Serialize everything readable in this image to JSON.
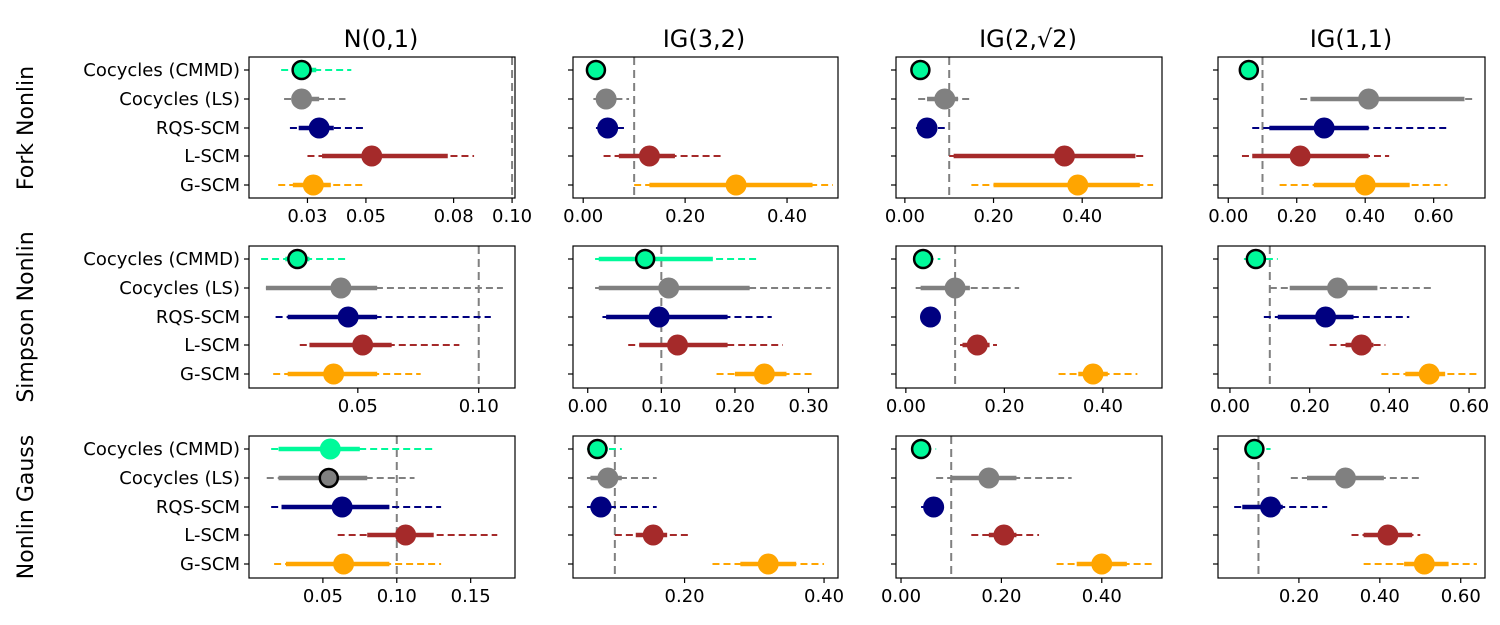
{
  "figure": {
    "column_titles": [
      "N(0,1)",
      "IG(3,2)",
      "IG(2,√2)",
      "IG(1,1)"
    ],
    "row_titles": [
      "Fork Nonlin",
      "Simpson Nonlin",
      "Nonlin Gauss"
    ],
    "method_labels": [
      "Cocycles (CMMD)",
      "Cocycles (LS)",
      "RQS-SCM",
      "L-SCM",
      "G-SCM"
    ],
    "colors": {
      "Cocycles (CMMD)": "#00FA9A",
      "Cocycles (LS)": "#808080",
      "RQS-SCM": "#000080",
      "L-SCM": "#A52A2A",
      "G-SCM": "#FFA500"
    }
  },
  "chart_data": [
    {
      "type": "scatter",
      "title": "N(0,1)",
      "row": "Fork Nonlin",
      "xlim": [
        0.01,
        0.101
      ],
      "xticks": [
        0.03,
        0.05,
        0.08,
        0.1
      ],
      "xticklabels": [
        "0.03",
        "0.05",
        "0.08",
        "0.10"
      ],
      "reference_line": 0.1,
      "series": [
        {
          "name": "Cocycles (CMMD)",
          "median": 0.028,
          "ci_inner": [
            0.025,
            0.033
          ],
          "ci_outer": [
            0.021,
            0.045
          ],
          "highlight": true
        },
        {
          "name": "Cocycles (LS)",
          "median": 0.028,
          "ci_inner": [
            0.026,
            0.034
          ],
          "ci_outer": [
            0.022,
            0.043
          ],
          "highlight": false
        },
        {
          "name": "RQS-SCM",
          "median": 0.034,
          "ci_inner": [
            0.027,
            0.039
          ],
          "ci_outer": [
            0.024,
            0.049
          ],
          "highlight": false
        },
        {
          "name": "L-SCM",
          "median": 0.052,
          "ci_inner": [
            0.035,
            0.078
          ],
          "ci_outer": [
            0.03,
            0.087
          ],
          "highlight": false
        },
        {
          "name": "G-SCM",
          "median": 0.032,
          "ci_inner": [
            0.025,
            0.038
          ],
          "ci_outer": [
            0.02,
            0.049
          ],
          "highlight": false
        }
      ]
    },
    {
      "type": "scatter",
      "title": "IG(3,2)",
      "row": "Fork Nonlin",
      "xlim": [
        -0.02,
        0.5
      ],
      "xticks": [
        0.0,
        0.2,
        0.4
      ],
      "xticklabels": [
        "0.00",
        "0.20",
        "0.40"
      ],
      "reference_line": 0.1,
      "series": [
        {
          "name": "Cocycles (CMMD)",
          "median": 0.025,
          "ci_inner": [
            0.02,
            0.032
          ],
          "ci_outer": [
            0.017,
            0.035
          ],
          "highlight": true
        },
        {
          "name": "Cocycles (LS)",
          "median": 0.045,
          "ci_inner": [
            0.03,
            0.06
          ],
          "ci_outer": [
            0.02,
            0.09
          ],
          "highlight": false
        },
        {
          "name": "RQS-SCM",
          "median": 0.048,
          "ci_inner": [
            0.03,
            0.065
          ],
          "ci_outer": [
            0.025,
            0.08
          ],
          "highlight": false
        },
        {
          "name": "L-SCM",
          "median": 0.13,
          "ci_inner": [
            0.07,
            0.18
          ],
          "ci_outer": [
            0.04,
            0.27
          ],
          "highlight": false
        },
        {
          "name": "G-SCM",
          "median": 0.3,
          "ci_inner": [
            0.13,
            0.45
          ],
          "ci_outer": [
            0.1,
            0.49
          ],
          "highlight": false
        }
      ]
    },
    {
      "type": "scatter",
      "title": "IG(2,√2)",
      "row": "Fork Nonlin",
      "xlim": [
        -0.02,
        0.58
      ],
      "xticks": [
        0.0,
        0.2,
        0.4
      ],
      "xticklabels": [
        "0.00",
        "0.20",
        "0.40"
      ],
      "reference_line": 0.1,
      "series": [
        {
          "name": "Cocycles (CMMD)",
          "median": 0.035,
          "ci_inner": [
            0.025,
            0.045
          ],
          "ci_outer": [
            0.02,
            0.05
          ],
          "highlight": true
        },
        {
          "name": "Cocycles (LS)",
          "median": 0.09,
          "ci_inner": [
            0.05,
            0.12
          ],
          "ci_outer": [
            0.03,
            0.15
          ],
          "highlight": false
        },
        {
          "name": "RQS-SCM",
          "median": 0.05,
          "ci_inner": [
            0.035,
            0.07
          ],
          "ci_outer": [
            0.025,
            0.09
          ],
          "highlight": false
        },
        {
          "name": "L-SCM",
          "median": 0.36,
          "ci_inner": [
            0.11,
            0.52
          ],
          "ci_outer": [
            0.1,
            0.54
          ],
          "highlight": false
        },
        {
          "name": "G-SCM",
          "median": 0.39,
          "ci_inner": [
            0.2,
            0.53
          ],
          "ci_outer": [
            0.15,
            0.56
          ],
          "highlight": false
        }
      ]
    },
    {
      "type": "scatter",
      "title": "IG(1,1)",
      "row": "Fork Nonlin",
      "xlim": [
        -0.03,
        0.75
      ],
      "xticks": [
        0.0,
        0.2,
        0.4,
        0.6
      ],
      "xticklabels": [
        "0.00",
        "0.20",
        "0.40",
        "0.60"
      ],
      "reference_line": 0.1,
      "series": [
        {
          "name": "Cocycles (CMMD)",
          "median": 0.06,
          "ci_inner": [
            0.045,
            0.075
          ],
          "ci_outer": [
            0.04,
            0.08
          ],
          "highlight": true
        },
        {
          "name": "Cocycles (LS)",
          "median": 0.41,
          "ci_inner": [
            0.24,
            0.69
          ],
          "ci_outer": [
            0.21,
            0.72
          ],
          "highlight": false
        },
        {
          "name": "RQS-SCM",
          "median": 0.28,
          "ci_inner": [
            0.12,
            0.41
          ],
          "ci_outer": [
            0.07,
            0.64
          ],
          "highlight": false
        },
        {
          "name": "L-SCM",
          "median": 0.21,
          "ci_inner": [
            0.07,
            0.41
          ],
          "ci_outer": [
            0.04,
            0.47
          ],
          "highlight": false
        },
        {
          "name": "G-SCM",
          "median": 0.4,
          "ci_inner": [
            0.25,
            0.53
          ],
          "ci_outer": [
            0.15,
            0.64
          ],
          "highlight": false
        }
      ]
    },
    {
      "type": "scatter",
      "title": "N(0,1)",
      "row": "Simpson Nonlin",
      "xlim": [
        0.005,
        0.115
      ],
      "xticks": [
        0.05,
        0.1
      ],
      "xticklabels": [
        "0.05",
        "0.10"
      ],
      "reference_line": 0.1,
      "series": [
        {
          "name": "Cocycles (CMMD)",
          "median": 0.025,
          "ci_inner": [
            0.02,
            0.03
          ],
          "ci_outer": [
            0.01,
            0.045
          ],
          "highlight": true
        },
        {
          "name": "Cocycles (LS)",
          "median": 0.043,
          "ci_inner": [
            0.012,
            0.058
          ],
          "ci_outer": [
            0.012,
            0.11
          ],
          "highlight": false
        },
        {
          "name": "RQS-SCM",
          "median": 0.046,
          "ci_inner": [
            0.021,
            0.058
          ],
          "ci_outer": [
            0.016,
            0.105
          ],
          "highlight": false
        },
        {
          "name": "L-SCM",
          "median": 0.052,
          "ci_inner": [
            0.03,
            0.064
          ],
          "ci_outer": [
            0.026,
            0.092
          ],
          "highlight": false
        },
        {
          "name": "G-SCM",
          "median": 0.04,
          "ci_inner": [
            0.021,
            0.058
          ],
          "ci_outer": [
            0.015,
            0.076
          ],
          "highlight": false
        }
      ]
    },
    {
      "type": "scatter",
      "title": "IG(3,2)",
      "row": "Simpson Nonlin",
      "xlim": [
        -0.02,
        0.34
      ],
      "xticks": [
        0.0,
        0.1,
        0.2,
        0.3
      ],
      "xticklabels": [
        "0.00",
        "0.10",
        "0.20",
        "0.30"
      ],
      "reference_line": 0.1,
      "series": [
        {
          "name": "Cocycles (CMMD)",
          "median": 0.078,
          "ci_inner": [
            0.015,
            0.17
          ],
          "ci_outer": [
            0.01,
            0.23
          ],
          "highlight": true
        },
        {
          "name": "Cocycles (LS)",
          "median": 0.11,
          "ci_inner": [
            0.015,
            0.22
          ],
          "ci_outer": [
            0.01,
            0.33
          ],
          "highlight": false
        },
        {
          "name": "RQS-SCM",
          "median": 0.097,
          "ci_inner": [
            0.025,
            0.19
          ],
          "ci_outer": [
            0.02,
            0.25
          ],
          "highlight": false
        },
        {
          "name": "L-SCM",
          "median": 0.122,
          "ci_inner": [
            0.07,
            0.19
          ],
          "ci_outer": [
            0.055,
            0.265
          ],
          "highlight": false
        },
        {
          "name": "G-SCM",
          "median": 0.24,
          "ci_inner": [
            0.2,
            0.27
          ],
          "ci_outer": [
            0.175,
            0.305
          ],
          "highlight": false
        }
      ]
    },
    {
      "type": "scatter",
      "title": "IG(2,√2)",
      "row": "Simpson Nonlin",
      "xlim": [
        -0.02,
        0.52
      ],
      "xticks": [
        0.0,
        0.2,
        0.4
      ],
      "xticklabels": [
        "0.00",
        "0.20",
        "0.40"
      ],
      "reference_line": 0.1,
      "series": [
        {
          "name": "Cocycles (CMMD)",
          "median": 0.035,
          "ci_inner": [
            0.025,
            0.05
          ],
          "ci_outer": [
            0.02,
            0.07
          ],
          "highlight": true
        },
        {
          "name": "Cocycles (LS)",
          "median": 0.1,
          "ci_inner": [
            0.03,
            0.13
          ],
          "ci_outer": [
            0.02,
            0.23
          ],
          "highlight": false
        },
        {
          "name": "RQS-SCM",
          "median": 0.05,
          "ci_inner": [
            0.04,
            0.062
          ],
          "ci_outer": [
            0.035,
            0.065
          ],
          "highlight": false
        },
        {
          "name": "L-SCM",
          "median": 0.145,
          "ci_inner": [
            0.115,
            0.17
          ],
          "ci_outer": [
            0.11,
            0.185
          ],
          "highlight": false
        },
        {
          "name": "G-SCM",
          "median": 0.38,
          "ci_inner": [
            0.35,
            0.41
          ],
          "ci_outer": [
            0.31,
            0.47
          ],
          "highlight": false
        }
      ]
    },
    {
      "type": "scatter",
      "title": "IG(1,1)",
      "row": "Simpson Nonlin",
      "xlim": [
        -0.03,
        0.64
      ],
      "xticks": [
        0.0,
        0.2,
        0.4,
        0.6
      ],
      "xticklabels": [
        "0.00",
        "0.20",
        "0.40",
        "0.60"
      ],
      "reference_line": 0.1,
      "series": [
        {
          "name": "Cocycles (CMMD)",
          "median": 0.065,
          "ci_inner": [
            0.045,
            0.09
          ],
          "ci_outer": [
            0.035,
            0.12
          ],
          "highlight": true
        },
        {
          "name": "Cocycles (LS)",
          "median": 0.27,
          "ci_inner": [
            0.15,
            0.37
          ],
          "ci_outer": [
            0.1,
            0.51
          ],
          "highlight": false
        },
        {
          "name": "RQS-SCM",
          "median": 0.24,
          "ci_inner": [
            0.12,
            0.31
          ],
          "ci_outer": [
            0.085,
            0.45
          ],
          "highlight": false
        },
        {
          "name": "L-SCM",
          "median": 0.33,
          "ci_inner": [
            0.29,
            0.36
          ],
          "ci_outer": [
            0.25,
            0.39
          ],
          "highlight": false
        },
        {
          "name": "G-SCM",
          "median": 0.5,
          "ci_inner": [
            0.44,
            0.54
          ],
          "ci_outer": [
            0.38,
            0.62
          ],
          "highlight": false
        }
      ]
    },
    {
      "type": "scatter",
      "title": "N(0,1)",
      "row": "Nonlin Gauss",
      "xlim": [
        0.0,
        0.18
      ],
      "xticks": [
        0.05,
        0.1,
        0.15
      ],
      "xticklabels": [
        "0.05",
        "0.10",
        "0.15"
      ],
      "reference_line": 0.1,
      "series": [
        {
          "name": "Cocycles (CMMD)",
          "median": 0.055,
          "ci_inner": [
            0.02,
            0.075
          ],
          "ci_outer": [
            0.015,
            0.125
          ],
          "highlight": false
        },
        {
          "name": "Cocycles (LS)",
          "median": 0.054,
          "ci_inner": [
            0.02,
            0.08
          ],
          "ci_outer": [
            0.012,
            0.112
          ],
          "highlight": true
        },
        {
          "name": "RQS-SCM",
          "median": 0.063,
          "ci_inner": [
            0.022,
            0.095
          ],
          "ci_outer": [
            0.015,
            0.13
          ],
          "highlight": false
        },
        {
          "name": "L-SCM",
          "median": 0.106,
          "ci_inner": [
            0.08,
            0.125
          ],
          "ci_outer": [
            0.06,
            0.168
          ],
          "highlight": false
        },
        {
          "name": "G-SCM",
          "median": 0.064,
          "ci_inner": [
            0.025,
            0.095
          ],
          "ci_outer": [
            0.017,
            0.13
          ],
          "highlight": false
        }
      ]
    },
    {
      "type": "scatter",
      "title": "IG(3,2)",
      "row": "Nonlin Gauss",
      "xlim": [
        0.04,
        0.42
      ],
      "xticks": [
        0.2,
        0.4
      ],
      "xticklabels": [
        "0.20",
        "0.40"
      ],
      "reference_line": 0.1,
      "series": [
        {
          "name": "Cocycles (CMMD)",
          "median": 0.075,
          "ci_inner": [
            0.065,
            0.09
          ],
          "ci_outer": [
            0.06,
            0.11
          ],
          "highlight": true
        },
        {
          "name": "Cocycles (LS)",
          "median": 0.09,
          "ci_inner": [
            0.065,
            0.11
          ],
          "ci_outer": [
            0.06,
            0.16
          ],
          "highlight": false
        },
        {
          "name": "RQS-SCM",
          "median": 0.08,
          "ci_inner": [
            0.065,
            0.095
          ],
          "ci_outer": [
            0.06,
            0.16
          ],
          "highlight": false
        },
        {
          "name": "L-SCM",
          "median": 0.155,
          "ci_inner": [
            0.13,
            0.175
          ],
          "ci_outer": [
            0.1,
            0.21
          ],
          "highlight": false
        },
        {
          "name": "G-SCM",
          "median": 0.32,
          "ci_inner": [
            0.28,
            0.36
          ],
          "ci_outer": [
            0.24,
            0.4
          ],
          "highlight": false
        }
      ]
    },
    {
      "type": "scatter",
      "title": "IG(2,√2)",
      "row": "Nonlin Gauss",
      "xlim": [
        -0.01,
        0.52
      ],
      "xticks": [
        0.0,
        0.2,
        0.4
      ],
      "xticklabels": [
        "0.00",
        "0.20",
        "0.40"
      ],
      "reference_line": 0.1,
      "series": [
        {
          "name": "Cocycles (CMMD)",
          "median": 0.04,
          "ci_inner": [
            0.03,
            0.05
          ],
          "ci_outer": [
            0.025,
            0.07
          ],
          "highlight": true
        },
        {
          "name": "Cocycles (LS)",
          "median": 0.175,
          "ci_inner": [
            0.1,
            0.23
          ],
          "ci_outer": [
            0.07,
            0.34
          ],
          "highlight": false
        },
        {
          "name": "RQS-SCM",
          "median": 0.065,
          "ci_inner": [
            0.05,
            0.075
          ],
          "ci_outer": [
            0.04,
            0.08
          ],
          "highlight": false
        },
        {
          "name": "L-SCM",
          "median": 0.205,
          "ci_inner": [
            0.175,
            0.23
          ],
          "ci_outer": [
            0.14,
            0.275
          ],
          "highlight": false
        },
        {
          "name": "G-SCM",
          "median": 0.4,
          "ci_inner": [
            0.35,
            0.45
          ],
          "ci_outer": [
            0.31,
            0.5
          ],
          "highlight": false
        }
      ]
    },
    {
      "type": "scatter",
      "title": "IG(1,1)",
      "row": "Nonlin Gauss",
      "xlim": [
        0.0,
        0.66
      ],
      "xticks": [
        0.2,
        0.4,
        0.6
      ],
      "xticklabels": [
        "0.20",
        "0.40",
        "0.60"
      ],
      "reference_line": 0.1,
      "series": [
        {
          "name": "Cocycles (CMMD)",
          "median": 0.09,
          "ci_inner": [
            0.075,
            0.11
          ],
          "ci_outer": [
            0.065,
            0.13
          ],
          "highlight": true
        },
        {
          "name": "Cocycles (LS)",
          "median": 0.315,
          "ci_inner": [
            0.22,
            0.41
          ],
          "ci_outer": [
            0.18,
            0.5
          ],
          "highlight": false
        },
        {
          "name": "RQS-SCM",
          "median": 0.13,
          "ci_inner": [
            0.06,
            0.16
          ],
          "ci_outer": [
            0.04,
            0.27
          ],
          "highlight": false
        },
        {
          "name": "L-SCM",
          "median": 0.42,
          "ci_inner": [
            0.36,
            0.48
          ],
          "ci_outer": [
            0.33,
            0.5
          ],
          "highlight": false
        },
        {
          "name": "G-SCM",
          "median": 0.51,
          "ci_inner": [
            0.46,
            0.57
          ],
          "ci_outer": [
            0.36,
            0.64
          ],
          "highlight": false
        }
      ]
    }
  ]
}
